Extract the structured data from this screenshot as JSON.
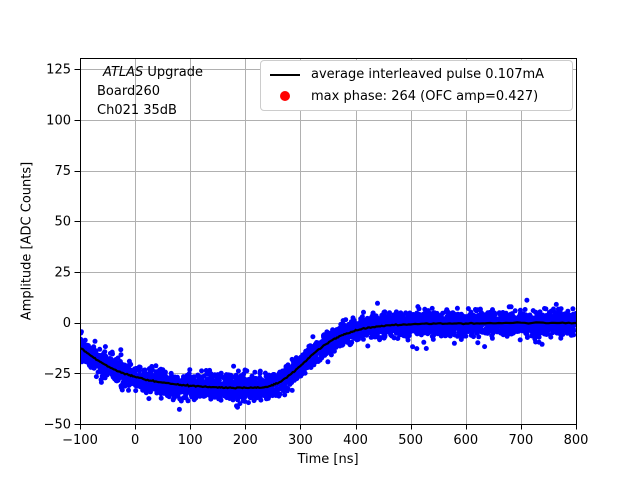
{
  "figure": {
    "background": "#ffffff"
  },
  "chart_data": {
    "type": "scatter",
    "title": "",
    "xlabel": "Time [ns]",
    "ylabel": "Amplitude [ADC Counts]",
    "xlim": [
      -100,
      800
    ],
    "ylim": [
      -50,
      130.5
    ],
    "grid": true,
    "grid_color": "#b0b0b0",
    "axis_color": "#000000",
    "legend_position": "upper right",
    "xticks": [
      {
        "v": -100,
        "label": "−100"
      },
      {
        "v": 0,
        "label": "0"
      },
      {
        "v": 100,
        "label": "100"
      },
      {
        "v": 200,
        "label": "200"
      },
      {
        "v": 300,
        "label": "300"
      },
      {
        "v": 400,
        "label": "400"
      },
      {
        "v": 500,
        "label": "500"
      },
      {
        "v": 600,
        "label": "600"
      },
      {
        "v": 700,
        "label": "700"
      },
      {
        "v": 800,
        "label": "800"
      }
    ],
    "yticks": [
      {
        "v": -50,
        "label": "−50"
      },
      {
        "v": -25,
        "label": "−25"
      },
      {
        "v": 0,
        "label": "0"
      },
      {
        "v": 25,
        "label": "25"
      },
      {
        "v": 50,
        "label": "50"
      },
      {
        "v": 75,
        "label": "75"
      },
      {
        "v": 100,
        "label": "100"
      },
      {
        "v": 125,
        "label": "125"
      }
    ],
    "annotation": {
      "line1_italic": "ATLAS",
      "line1_rest": " Upgrade",
      "line2": "Board260",
      "line3": "Ch021 35dB"
    },
    "legend": {
      "entries": [
        {
          "marker": "line",
          "color": "#000000",
          "label": "average interleaved pulse 0.107mA"
        },
        {
          "marker": "dot",
          "color": "#ff0000",
          "label": "max phase: 264 (OFC amp=0.427)"
        }
      ]
    },
    "series": [
      {
        "name": "interleaved pulse samples",
        "type": "scatter",
        "color": "#0000ff",
        "marker_radius": 2.5,
        "n_points": 3800,
        "noise_sigma": 2.9,
        "outlier_sigma": 4.6,
        "outlier_fraction": 0.05,
        "seed": 1337
      },
      {
        "name": "average interleaved pulse",
        "type": "line",
        "color": "#000000",
        "line_width": 2.2,
        "points": [
          [
            -100,
            -12.5
          ],
          [
            -87,
            -15.0
          ],
          [
            -75,
            -17.3
          ],
          [
            -62,
            -19.5
          ],
          [
            -50,
            -21.4
          ],
          [
            -37,
            -23.2
          ],
          [
            -25,
            -24.6
          ],
          [
            -12,
            -25.8
          ],
          [
            0,
            -26.8
          ],
          [
            15,
            -27.8
          ],
          [
            30,
            -28.7
          ],
          [
            45,
            -29.4
          ],
          [
            60,
            -30.0
          ],
          [
            75,
            -30.5
          ],
          [
            90,
            -30.9
          ],
          [
            105,
            -31.2
          ],
          [
            120,
            -31.5
          ],
          [
            135,
            -31.7
          ],
          [
            150,
            -31.9
          ],
          [
            165,
            -32.0
          ],
          [
            180,
            -32.1
          ],
          [
            195,
            -32.15
          ],
          [
            210,
            -32.15
          ],
          [
            225,
            -32.1
          ],
          [
            238,
            -31.8
          ],
          [
            250,
            -30.8
          ],
          [
            262,
            -29.3
          ],
          [
            275,
            -27.0
          ],
          [
            288,
            -24.2
          ],
          [
            300,
            -21.4
          ],
          [
            312,
            -18.3
          ],
          [
            325,
            -15.1
          ],
          [
            338,
            -12.3
          ],
          [
            350,
            -10.0
          ],
          [
            362,
            -8.0
          ],
          [
            375,
            -6.3
          ],
          [
            388,
            -5.0
          ],
          [
            400,
            -4.0
          ],
          [
            415,
            -3.0
          ],
          [
            430,
            -2.3
          ],
          [
            445,
            -1.8
          ],
          [
            460,
            -1.4
          ],
          [
            480,
            -1.1
          ],
          [
            500,
            -0.8
          ],
          [
            525,
            -0.6
          ],
          [
            550,
            -0.5
          ],
          [
            575,
            -0.4
          ],
          [
            600,
            -0.35
          ],
          [
            630,
            -0.3
          ],
          [
            660,
            -0.25
          ],
          [
            700,
            -0.2
          ],
          [
            740,
            -0.2
          ],
          [
            770,
            -0.2
          ],
          [
            800,
            -0.2
          ]
        ]
      }
    ]
  }
}
